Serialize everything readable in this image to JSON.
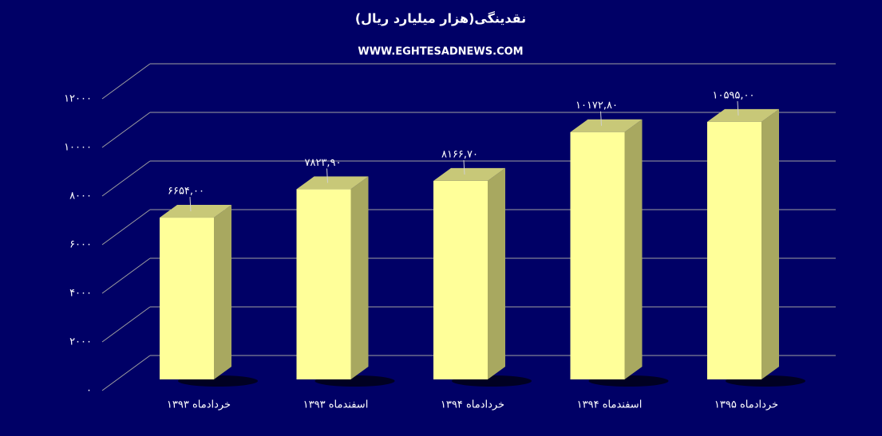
{
  "chart_data": {
    "type": "bar3d",
    "title": "نقدینگی(هزار میلیارد ریال)",
    "subtitle": "WWW.EGHTESADNEWS.COM",
    "categories": [
      "خردادماه ۱۳۹۳",
      "اسفندماه ۱۳۹۳",
      "خردادماه ۱۳۹۴",
      "اسفندماه ۱۳۹۴",
      "خردادماه ۱۳۹۵"
    ],
    "values": [
      6654,
      7823.9,
      8166.7,
      10172.8,
      10595
    ],
    "value_labels": [
      "۶۶۵۴,۰۰",
      "۷۸۲۳,۹۰",
      "۸۱۶۶,۷۰",
      "۱۰۱۷۲,۸۰",
      "۱۰۵۹۵,۰۰"
    ],
    "color": "#ffff99",
    "ylim": [
      0,
      12000
    ],
    "yticks": [
      {
        "value": 0,
        "label": "۰"
      },
      {
        "value": 2000,
        "label": "۲۰۰۰"
      },
      {
        "value": 4000,
        "label": "۴۰۰۰"
      },
      {
        "value": 6000,
        "label": "۶۰۰۰"
      },
      {
        "value": 8000,
        "label": "۸۰۰۰"
      },
      {
        "value": 10000,
        "label": "۱۰۰۰۰"
      },
      {
        "value": 12000,
        "label": "۱۲۰۰۰"
      }
    ],
    "grid": true
  }
}
